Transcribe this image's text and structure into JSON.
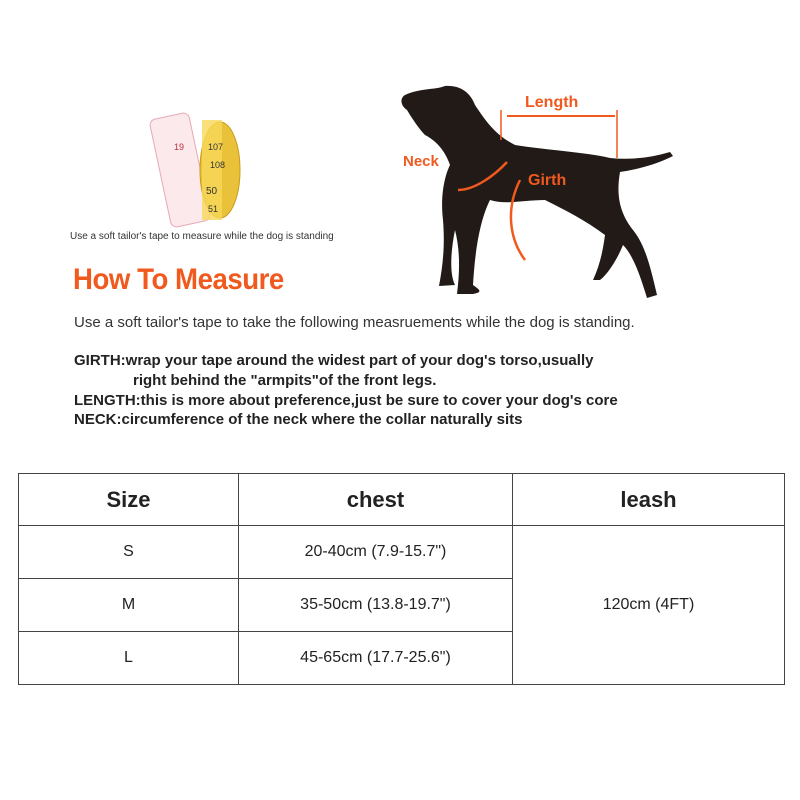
{
  "tape_image": {
    "numbers": [
      "19",
      "107",
      "108",
      "50",
      "51"
    ],
    "caption": "Use a soft tailor's tape to measure while the dog is standing"
  },
  "dog_diagram": {
    "labels": {
      "length": "Length",
      "neck": "Neck",
      "girth": "Girth"
    },
    "accent": "#f05a1e"
  },
  "title": "How To Measure",
  "intro": "Use a soft tailor's tape to take the following measruements while the dog is standing.",
  "definitions": {
    "girth_1": "GIRTH:wrap your tape around the widest part of your dog's torso,usually",
    "girth_2": "right behind the \"armpits\"of the front legs.",
    "length": "LENGTH:this is more about preference,just be sure to cover your dog's core",
    "neck": "NECK:circumference of the neck where the collar naturally sits"
  },
  "table": {
    "headers": [
      "Size",
      "chest",
      "leash"
    ],
    "rows": [
      {
        "size": "S",
        "chest": "20-40cm (7.9-15.7\")"
      },
      {
        "size": "M",
        "chest": "35-50cm (13.8-19.7\")"
      },
      {
        "size": "L",
        "chest": "45-65cm (17.7-25.6\")"
      }
    ],
    "leash": "120cm (4FT)"
  }
}
